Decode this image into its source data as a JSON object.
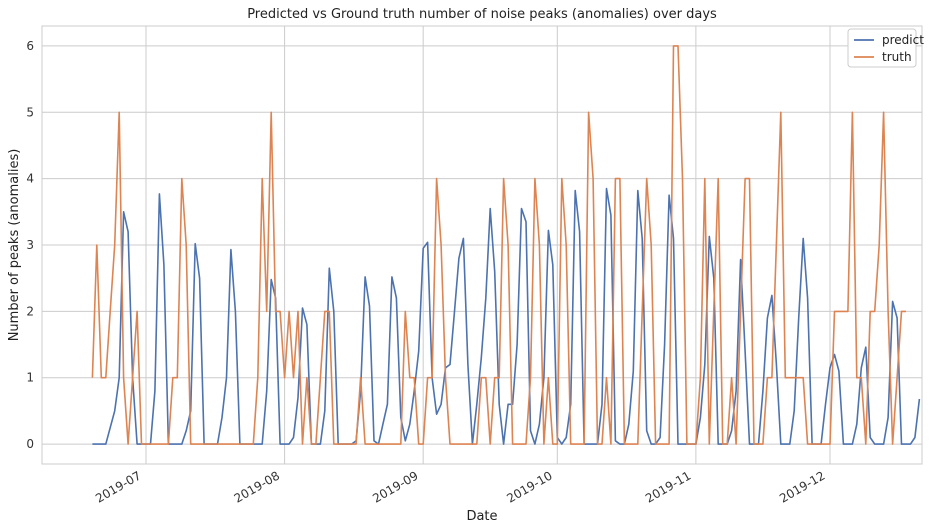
{
  "chart_data": {
    "type": "line",
    "title": "Predicted vs Ground truth number of noise peaks (anomalies) over days",
    "xlabel": "Date",
    "ylabel": "Number of peaks (anomalies)",
    "x_tick_labels": [
      "2019-07",
      "2019-08",
      "2019-09",
      "2019-10",
      "2019-11",
      "2019-12"
    ],
    "y_tick_labels": [
      "0",
      "1",
      "2",
      "3",
      "4",
      "5",
      "6"
    ],
    "ylim": [
      -0.3,
      6.3
    ],
    "grid": true,
    "legend_position": "top-right",
    "colors": {
      "predict": "#4c72b0",
      "truth": "#dd8452",
      "grid": "#cccccc",
      "frame": "#cccccc"
    },
    "series": [
      {
        "name": "predict",
        "points": [
          [
            "2019-06-19",
            0
          ],
          [
            "2019-06-22",
            0
          ],
          [
            "2019-06-24",
            0.5
          ],
          [
            "2019-06-25",
            1
          ],
          [
            "2019-06-26",
            3.5
          ],
          [
            "2019-06-27",
            3.2
          ],
          [
            "2019-06-28",
            1
          ],
          [
            "2019-06-29",
            0
          ],
          [
            "2019-07-02",
            0
          ],
          [
            "2019-07-03",
            0.8
          ],
          [
            "2019-07-04",
            3.77
          ],
          [
            "2019-07-05",
            2.7
          ],
          [
            "2019-07-06",
            0
          ],
          [
            "2019-07-08",
            0
          ],
          [
            "2019-07-09",
            0
          ],
          [
            "2019-07-10",
            0.2
          ],
          [
            "2019-07-11",
            0.5
          ],
          [
            "2019-07-12",
            3.02
          ],
          [
            "2019-07-13",
            2.5
          ],
          [
            "2019-07-14",
            0
          ],
          [
            "2019-07-17",
            0
          ],
          [
            "2019-07-18",
            0.4
          ],
          [
            "2019-07-19",
            1
          ],
          [
            "2019-07-20",
            2.93
          ],
          [
            "2019-07-21",
            2
          ],
          [
            "2019-07-22",
            0
          ],
          [
            "2019-07-27",
            0
          ],
          [
            "2019-07-28",
            0.8
          ],
          [
            "2019-07-29",
            2.48
          ],
          [
            "2019-07-30",
            2.2
          ],
          [
            "2019-07-31",
            0
          ],
          [
            "2019-08-02",
            0
          ],
          [
            "2019-08-03",
            0.1
          ],
          [
            "2019-08-04",
            0.7
          ],
          [
            "2019-08-05",
            2.05
          ],
          [
            "2019-08-06",
            1.8
          ],
          [
            "2019-08-07",
            0
          ],
          [
            "2019-08-09",
            0
          ],
          [
            "2019-08-10",
            0.5
          ],
          [
            "2019-08-11",
            2.65
          ],
          [
            "2019-08-12",
            2
          ],
          [
            "2019-08-13",
            0
          ],
          [
            "2019-08-16",
            0
          ],
          [
            "2019-08-17",
            0.05
          ],
          [
            "2019-08-18",
            0.8
          ],
          [
            "2019-08-19",
            2.52
          ],
          [
            "2019-08-20",
            2.08
          ],
          [
            "2019-08-21",
            0.05
          ],
          [
            "2019-08-22",
            0
          ],
          [
            "2019-08-23",
            0.3
          ],
          [
            "2019-08-24",
            0.6
          ],
          [
            "2019-08-25",
            2.52
          ],
          [
            "2019-08-26",
            2.2
          ],
          [
            "2019-08-27",
            0.4
          ],
          [
            "2019-08-28",
            0.05
          ],
          [
            "2019-08-29",
            0.3
          ],
          [
            "2019-08-30",
            0.8
          ],
          [
            "2019-08-31",
            1.4
          ],
          [
            "2019-09-01",
            2.95
          ],
          [
            "2019-09-02",
            3.04
          ],
          [
            "2019-09-03",
            1
          ],
          [
            "2019-09-04",
            0.45
          ],
          [
            "2019-09-05",
            0.6
          ],
          [
            "2019-09-06",
            1.15
          ],
          [
            "2019-09-07",
            1.2
          ],
          [
            "2019-09-08",
            2
          ],
          [
            "2019-09-09",
            2.8
          ],
          [
            "2019-09-10",
            3.1
          ],
          [
            "2019-09-11",
            1.2
          ],
          [
            "2019-09-12",
            0
          ],
          [
            "2019-09-13",
            0.6
          ],
          [
            "2019-09-14",
            1.3
          ],
          [
            "2019-09-15",
            2.2
          ],
          [
            "2019-09-16",
            3.55
          ],
          [
            "2019-09-17",
            2.6
          ],
          [
            "2019-09-18",
            0.6
          ],
          [
            "2019-09-19",
            0
          ],
          [
            "2019-09-20",
            0.6
          ],
          [
            "2019-09-21",
            0.6
          ],
          [
            "2019-09-22",
            1.5
          ],
          [
            "2019-09-23",
            3.55
          ],
          [
            "2019-09-24",
            3.35
          ],
          [
            "2019-09-25",
            0.2
          ],
          [
            "2019-09-26",
            0
          ],
          [
            "2019-09-27",
            0.3
          ],
          [
            "2019-09-28",
            1
          ],
          [
            "2019-09-29",
            3.22
          ],
          [
            "2019-09-30",
            2.7
          ],
          [
            "2019-10-01",
            0.1
          ],
          [
            "2019-10-02",
            0
          ],
          [
            "2019-10-03",
            0.1
          ],
          [
            "2019-10-04",
            0.6
          ],
          [
            "2019-10-05",
            3.82
          ],
          [
            "2019-10-06",
            3.2
          ],
          [
            "2019-10-07",
            0
          ],
          [
            "2019-10-10",
            0
          ],
          [
            "2019-10-11",
            0.6
          ],
          [
            "2019-10-12",
            3.85
          ],
          [
            "2019-10-13",
            3.45
          ],
          [
            "2019-10-14",
            0.05
          ],
          [
            "2019-10-15",
            0
          ],
          [
            "2019-10-16",
            0
          ],
          [
            "2019-10-17",
            0.3
          ],
          [
            "2019-10-18",
            1.1
          ],
          [
            "2019-10-19",
            3.82
          ],
          [
            "2019-10-20",
            3.1
          ],
          [
            "2019-10-21",
            0.2
          ],
          [
            "2019-10-22",
            0
          ],
          [
            "2019-10-23",
            0
          ],
          [
            "2019-10-24",
            0.1
          ],
          [
            "2019-10-25",
            1.5
          ],
          [
            "2019-10-26",
            3.75
          ],
          [
            "2019-10-27",
            3.1
          ],
          [
            "2019-10-28",
            0
          ],
          [
            "2019-11-01",
            0
          ],
          [
            "2019-11-02",
            0.4
          ],
          [
            "2019-11-03",
            1.2
          ],
          [
            "2019-11-04",
            3.13
          ],
          [
            "2019-11-05",
            2.5
          ],
          [
            "2019-11-06",
            0
          ],
          [
            "2019-11-08",
            0
          ],
          [
            "2019-11-09",
            0.2
          ],
          [
            "2019-11-10",
            0.8
          ],
          [
            "2019-11-11",
            2.78
          ],
          [
            "2019-11-12",
            1.4
          ],
          [
            "2019-11-13",
            0
          ],
          [
            "2019-11-15",
            0
          ],
          [
            "2019-11-16",
            0.8
          ],
          [
            "2019-11-17",
            1.9
          ],
          [
            "2019-11-18",
            2.24
          ],
          [
            "2019-11-19",
            1.2
          ],
          [
            "2019-11-20",
            0
          ],
          [
            "2019-11-22",
            0
          ],
          [
            "2019-11-23",
            0.5
          ],
          [
            "2019-11-24",
            1.9
          ],
          [
            "2019-11-25",
            3.1
          ],
          [
            "2019-11-26",
            2.2
          ],
          [
            "2019-11-27",
            0
          ],
          [
            "2019-11-29",
            0
          ],
          [
            "2019-11-30",
            0.6
          ],
          [
            "2019-12-01",
            1.15
          ],
          [
            "2019-12-02",
            1.35
          ],
          [
            "2019-12-03",
            1.1
          ],
          [
            "2019-12-04",
            0
          ],
          [
            "2019-12-06",
            0
          ],
          [
            "2019-12-07",
            0.3
          ],
          [
            "2019-12-08",
            1.15
          ],
          [
            "2019-12-09",
            1.46
          ],
          [
            "2019-12-10",
            0.1
          ],
          [
            "2019-12-11",
            0
          ],
          [
            "2019-12-13",
            0
          ],
          [
            "2019-12-14",
            0.4
          ],
          [
            "2019-12-15",
            2.15
          ],
          [
            "2019-12-16",
            1.9
          ],
          [
            "2019-12-17",
            0
          ],
          [
            "2019-12-19",
            0
          ],
          [
            "2019-12-20",
            0.1
          ],
          [
            "2019-12-21",
            0.68
          ]
        ]
      },
      {
        "name": "truth",
        "points": [
          [
            "2019-06-19",
            1
          ],
          [
            "2019-06-20",
            3
          ],
          [
            "2019-06-21",
            1
          ],
          [
            "2019-06-22",
            1
          ],
          [
            "2019-06-23",
            2
          ],
          [
            "2019-06-24",
            3
          ],
          [
            "2019-06-25",
            5
          ],
          [
            "2019-06-26",
            1
          ],
          [
            "2019-06-27",
            0
          ],
          [
            "2019-06-28",
            1
          ],
          [
            "2019-06-29",
            2
          ],
          [
            "2019-06-30",
            0
          ],
          [
            "2019-07-02",
            0
          ],
          [
            "2019-07-03",
            0
          ],
          [
            "2019-07-05",
            0
          ],
          [
            "2019-07-06",
            0
          ],
          [
            "2019-07-07",
            1
          ],
          [
            "2019-07-08",
            1
          ],
          [
            "2019-07-09",
            4
          ],
          [
            "2019-07-10",
            3
          ],
          [
            "2019-07-11",
            0
          ],
          [
            "2019-07-13",
            0
          ],
          [
            "2019-07-25",
            0
          ],
          [
            "2019-07-26",
            1
          ],
          [
            "2019-07-27",
            4
          ],
          [
            "2019-07-28",
            2
          ],
          [
            "2019-07-29",
            5
          ],
          [
            "2019-07-30",
            2
          ],
          [
            "2019-07-31",
            2
          ],
          [
            "2019-08-01",
            1
          ],
          [
            "2019-08-02",
            2
          ],
          [
            "2019-08-03",
            1
          ],
          [
            "2019-08-04",
            2
          ],
          [
            "2019-08-05",
            0
          ],
          [
            "2019-08-06",
            1
          ],
          [
            "2019-08-07",
            0
          ],
          [
            "2019-08-08",
            0
          ],
          [
            "2019-08-09",
            1
          ],
          [
            "2019-08-10",
            2
          ],
          [
            "2019-08-11",
            2
          ],
          [
            "2019-08-12",
            0
          ],
          [
            "2019-08-16",
            0
          ],
          [
            "2019-08-17",
            0
          ],
          [
            "2019-08-18",
            1
          ],
          [
            "2019-08-19",
            0
          ],
          [
            "2019-08-27",
            0
          ],
          [
            "2019-08-28",
            2
          ],
          [
            "2019-08-29",
            1
          ],
          [
            "2019-08-30",
            1
          ],
          [
            "2019-08-31",
            0
          ],
          [
            "2019-09-01",
            0
          ],
          [
            "2019-09-02",
            1
          ],
          [
            "2019-09-03",
            1
          ],
          [
            "2019-09-04",
            4
          ],
          [
            "2019-09-05",
            3
          ],
          [
            "2019-09-06",
            1
          ],
          [
            "2019-09-07",
            0
          ],
          [
            "2019-09-13",
            0
          ],
          [
            "2019-09-14",
            1
          ],
          [
            "2019-09-15",
            1
          ],
          [
            "2019-09-16",
            0
          ],
          [
            "2019-09-17",
            1
          ],
          [
            "2019-09-18",
            1
          ],
          [
            "2019-09-19",
            4
          ],
          [
            "2019-09-20",
            3
          ],
          [
            "2019-09-21",
            0
          ],
          [
            "2019-09-24",
            0
          ],
          [
            "2019-09-25",
            1
          ],
          [
            "2019-09-26",
            4
          ],
          [
            "2019-09-27",
            3
          ],
          [
            "2019-09-28",
            0
          ],
          [
            "2019-09-29",
            1
          ],
          [
            "2019-09-30",
            0
          ],
          [
            "2019-10-01",
            0
          ],
          [
            "2019-10-02",
            4
          ],
          [
            "2019-10-03",
            3
          ],
          [
            "2019-10-04",
            0
          ],
          [
            "2019-10-07",
            0
          ],
          [
            "2019-10-08",
            5
          ],
          [
            "2019-10-09",
            4
          ],
          [
            "2019-10-10",
            0
          ],
          [
            "2019-10-11",
            0
          ],
          [
            "2019-10-12",
            1
          ],
          [
            "2019-10-13",
            0
          ],
          [
            "2019-10-14",
            4
          ],
          [
            "2019-10-15",
            4
          ],
          [
            "2019-10-16",
            0
          ],
          [
            "2019-10-19",
            0
          ],
          [
            "2019-10-20",
            2
          ],
          [
            "2019-10-21",
            4
          ],
          [
            "2019-10-22",
            3
          ],
          [
            "2019-10-23",
            0
          ],
          [
            "2019-10-26",
            0
          ],
          [
            "2019-10-27",
            6
          ],
          [
            "2019-10-28",
            6
          ],
          [
            "2019-10-29",
            4
          ],
          [
            "2019-10-30",
            0
          ],
          [
            "2019-11-01",
            0
          ],
          [
            "2019-11-02",
            1
          ],
          [
            "2019-11-03",
            4
          ],
          [
            "2019-11-04",
            0
          ],
          [
            "2019-11-06",
            4
          ],
          [
            "2019-11-07",
            0
          ],
          [
            "2019-11-08",
            0
          ],
          [
            "2019-11-09",
            1
          ],
          [
            "2019-11-10",
            0
          ],
          [
            "2019-11-12",
            4
          ],
          [
            "2019-11-13",
            4
          ],
          [
            "2019-11-14",
            0
          ],
          [
            "2019-11-16",
            0
          ],
          [
            "2019-11-17",
            1
          ],
          [
            "2019-11-18",
            1
          ],
          [
            "2019-11-20",
            5
          ],
          [
            "2019-11-21",
            1
          ],
          [
            "2019-11-25",
            1
          ],
          [
            "2019-11-26",
            0
          ],
          [
            "2019-12-01",
            0
          ],
          [
            "2019-12-02",
            2
          ],
          [
            "2019-12-05",
            2
          ],
          [
            "2019-12-06",
            5
          ],
          [
            "2019-12-07",
            1
          ],
          [
            "2019-12-08",
            1
          ],
          [
            "2019-12-09",
            0
          ],
          [
            "2019-12-10",
            2
          ],
          [
            "2019-12-11",
            2
          ],
          [
            "2019-12-12",
            3
          ],
          [
            "2019-12-13",
            5
          ],
          [
            "2019-12-14",
            2
          ],
          [
            "2019-12-15",
            0
          ],
          [
            "2019-12-16",
            1
          ],
          [
            "2019-12-17",
            2
          ],
          [
            "2019-12-18",
            2
          ]
        ]
      }
    ]
  }
}
